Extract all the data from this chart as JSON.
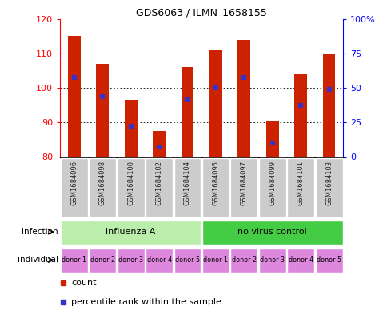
{
  "title": "GDS6063 / ILMN_1658155",
  "samples": [
    "GSM1684096",
    "GSM1684098",
    "GSM1684100",
    "GSM1684102",
    "GSM1684104",
    "GSM1684095",
    "GSM1684097",
    "GSM1684099",
    "GSM1684101",
    "GSM1684103"
  ],
  "count_values": [
    115.0,
    107.0,
    96.5,
    87.5,
    106.0,
    111.0,
    114.0,
    90.5,
    104.0,
    110.0
  ],
  "percentile_values": [
    103.0,
    97.5,
    89.0,
    83.0,
    96.5,
    100.0,
    103.0,
    84.0,
    95.0,
    99.5
  ],
  "bar_bottom": 80,
  "ylim": [
    80,
    120
  ],
  "yticks_left": [
    80,
    90,
    100,
    110,
    120
  ],
  "yticks_right": [
    0,
    25,
    50,
    75,
    100
  ],
  "bar_color": "#cc2200",
  "percentile_color": "#3333cc",
  "infection_groups": [
    {
      "label": "influenza A",
      "start": 0,
      "end": 5,
      "color": "#bbeeaa"
    },
    {
      "label": "no virus control",
      "start": 5,
      "end": 10,
      "color": "#44cc44"
    }
  ],
  "individual_labels": [
    "donor 1",
    "donor 2",
    "donor 3",
    "donor 4",
    "donor 5",
    "donor 1",
    "donor 2",
    "donor 3",
    "donor 4",
    "donor 5"
  ],
  "individual_color": "#dd88dd",
  "grid_color": "#000000",
  "bg_color": "#ffffff",
  "bar_width": 0.45,
  "sample_box_color": "#cccccc",
  "left_label_color": "#000000",
  "left_labels": [
    "infection",
    "individual"
  ],
  "arrow_color": "#444444"
}
